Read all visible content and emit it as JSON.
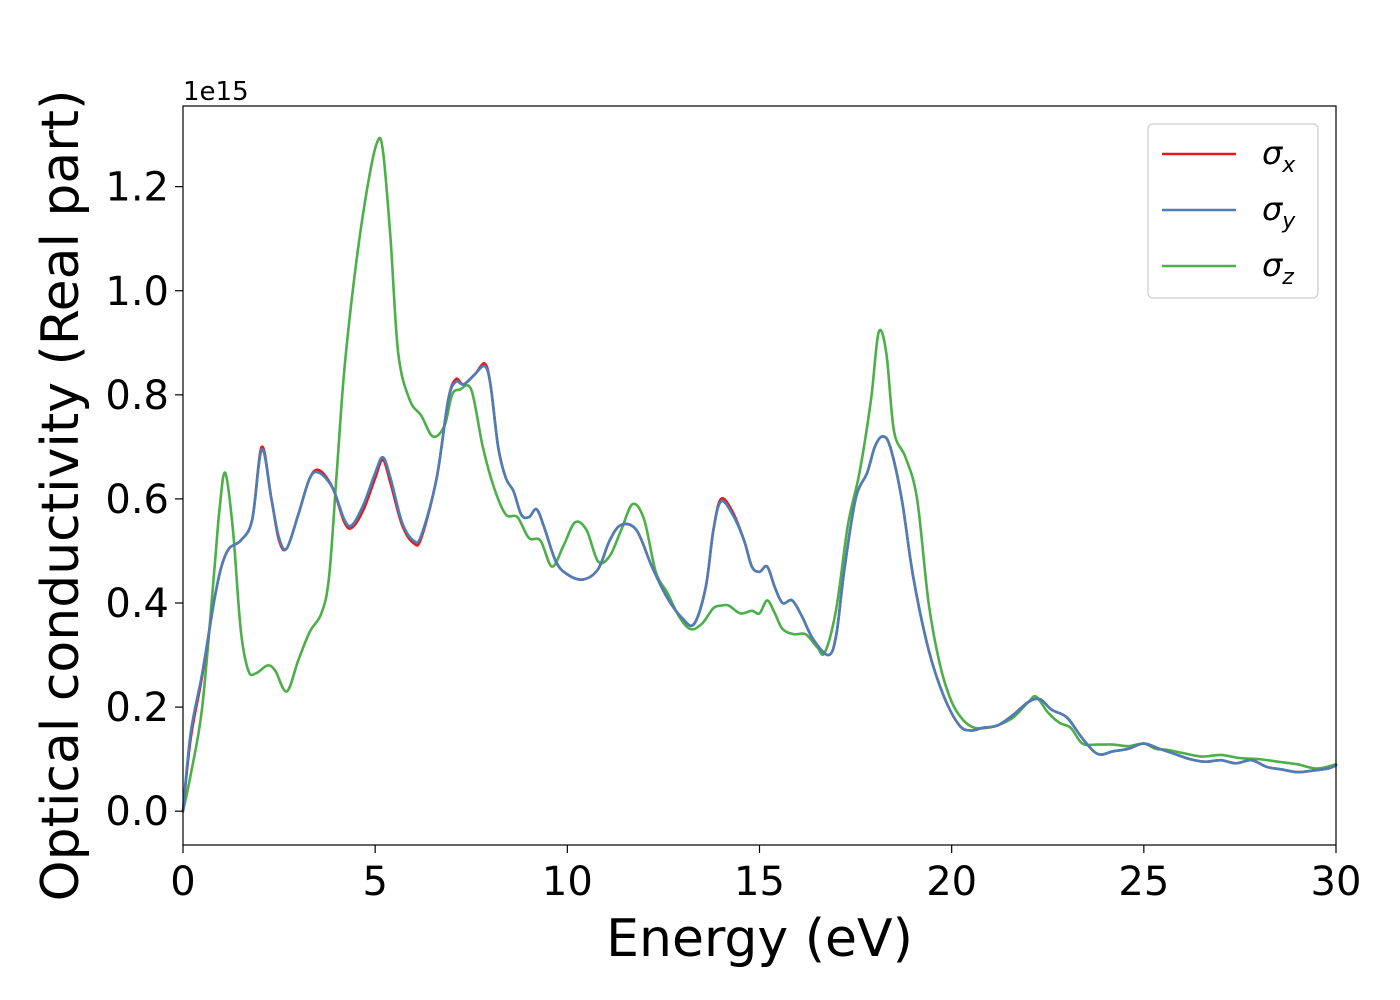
{
  "chart_data": {
    "type": "line",
    "xlabel": "Energy (eV)",
    "ylabel": "Optical conductivity (Real part)",
    "y_offset_label": "1e15",
    "xlim": [
      0,
      30
    ],
    "ylim": [
      -0.065,
      1.355
    ],
    "x_ticks": [
      0,
      5,
      10,
      15,
      20,
      25,
      30
    ],
    "x_tick_labels": [
      "0",
      "5",
      "10",
      "15",
      "20",
      "25",
      "30"
    ],
    "y_ticks": [
      0.0,
      0.2,
      0.4,
      0.6,
      0.8,
      1.0,
      1.2
    ],
    "y_tick_labels": [
      "0.0",
      "0.2",
      "0.4",
      "0.6",
      "0.8",
      "1.0",
      "1.2"
    ],
    "grid": false,
    "legend_position": "upper-right",
    "series": [
      {
        "name": "σx",
        "name_base": "σ",
        "name_sub": "x",
        "color": "#e41a1c",
        "x": [
          0,
          0.2,
          0.5,
          0.8,
          1.0,
          1.2,
          1.5,
          1.8,
          2.05,
          2.3,
          2.5,
          2.7,
          3.0,
          3.3,
          3.55,
          3.9,
          4.2,
          4.4,
          4.7,
          5.0,
          5.2,
          5.4,
          5.7,
          6.0,
          6.2,
          6.6,
          6.9,
          7.1,
          7.3,
          7.6,
          7.85,
          8.0,
          8.2,
          8.4,
          8.6,
          8.8,
          9.0,
          9.2,
          9.4,
          9.7,
          10.0,
          10.4,
          10.8,
          11.1,
          11.4,
          11.8,
          12.2,
          12.6,
          13.0,
          13.3,
          13.6,
          13.8,
          14.0,
          14.3,
          14.6,
          14.8,
          15.0,
          15.2,
          15.4,
          15.6,
          15.85,
          16.1,
          16.4,
          16.8,
          17.0,
          17.2,
          17.5,
          17.8,
          18.0,
          18.2,
          18.4,
          18.7,
          19.0,
          19.4,
          19.8,
          20.2,
          20.5,
          20.8,
          21.2,
          21.6,
          22.0,
          22.3,
          22.6,
          23.0,
          23.4,
          23.8,
          24.2,
          24.6,
          25.0,
          25.4,
          25.8,
          26.2,
          26.6,
          27.0,
          27.4,
          27.8,
          28.2,
          28.6,
          29.0,
          29.4,
          29.8,
          30.0
        ],
        "y": [
          0.0,
          0.14,
          0.26,
          0.4,
          0.47,
          0.505,
          0.52,
          0.56,
          0.7,
          0.6,
          0.52,
          0.505,
          0.57,
          0.64,
          0.655,
          0.62,
          0.555,
          0.545,
          0.58,
          0.64,
          0.675,
          0.63,
          0.55,
          0.515,
          0.525,
          0.64,
          0.79,
          0.83,
          0.82,
          0.84,
          0.86,
          0.82,
          0.7,
          0.64,
          0.615,
          0.57,
          0.565,
          0.58,
          0.545,
          0.48,
          0.455,
          0.445,
          0.465,
          0.52,
          0.55,
          0.54,
          0.47,
          0.41,
          0.37,
          0.36,
          0.43,
          0.54,
          0.6,
          0.575,
          0.52,
          0.47,
          0.46,
          0.47,
          0.43,
          0.4,
          0.405,
          0.375,
          0.33,
          0.3,
          0.34,
          0.46,
          0.6,
          0.65,
          0.7,
          0.72,
          0.7,
          0.6,
          0.45,
          0.31,
          0.22,
          0.165,
          0.155,
          0.16,
          0.165,
          0.185,
          0.21,
          0.215,
          0.195,
          0.18,
          0.14,
          0.11,
          0.115,
          0.12,
          0.13,
          0.12,
          0.11,
          0.1,
          0.095,
          0.098,
          0.092,
          0.098,
          0.085,
          0.08,
          0.075,
          0.078,
          0.082,
          0.088
        ]
      },
      {
        "name": "σy",
        "name_base": "σ",
        "name_sub": "y",
        "color": "#4a7fb8",
        "x": [
          0,
          0.2,
          0.5,
          0.8,
          1.0,
          1.2,
          1.5,
          1.8,
          2.05,
          2.3,
          2.5,
          2.7,
          3.0,
          3.3,
          3.55,
          3.9,
          4.2,
          4.4,
          4.7,
          5.0,
          5.2,
          5.4,
          5.7,
          6.0,
          6.2,
          6.6,
          6.9,
          7.1,
          7.3,
          7.6,
          7.85,
          8.0,
          8.2,
          8.4,
          8.6,
          8.8,
          9.0,
          9.2,
          9.4,
          9.7,
          10.0,
          10.4,
          10.8,
          11.1,
          11.4,
          11.8,
          12.2,
          12.6,
          13.0,
          13.3,
          13.6,
          13.8,
          14.0,
          14.3,
          14.6,
          14.8,
          15.0,
          15.2,
          15.4,
          15.6,
          15.85,
          16.1,
          16.4,
          16.8,
          17.0,
          17.2,
          17.5,
          17.8,
          18.0,
          18.2,
          18.4,
          18.7,
          19.0,
          19.4,
          19.8,
          20.2,
          20.5,
          20.8,
          21.2,
          21.6,
          22.0,
          22.3,
          22.6,
          23.0,
          23.4,
          23.8,
          24.2,
          24.6,
          25.0,
          25.4,
          25.8,
          26.2,
          26.6,
          27.0,
          27.4,
          27.8,
          28.2,
          28.6,
          29.0,
          29.4,
          29.8,
          30.0
        ],
        "y": [
          0.0,
          0.15,
          0.265,
          0.4,
          0.47,
          0.505,
          0.52,
          0.56,
          0.695,
          0.6,
          0.525,
          0.505,
          0.57,
          0.64,
          0.65,
          0.62,
          0.56,
          0.55,
          0.59,
          0.65,
          0.68,
          0.64,
          0.555,
          0.52,
          0.53,
          0.64,
          0.79,
          0.825,
          0.82,
          0.84,
          0.855,
          0.82,
          0.7,
          0.64,
          0.615,
          0.57,
          0.565,
          0.58,
          0.545,
          0.48,
          0.455,
          0.445,
          0.465,
          0.52,
          0.55,
          0.54,
          0.47,
          0.41,
          0.37,
          0.36,
          0.43,
          0.54,
          0.595,
          0.57,
          0.52,
          0.47,
          0.46,
          0.47,
          0.43,
          0.4,
          0.405,
          0.375,
          0.33,
          0.3,
          0.34,
          0.46,
          0.6,
          0.65,
          0.7,
          0.72,
          0.7,
          0.6,
          0.45,
          0.31,
          0.22,
          0.165,
          0.155,
          0.16,
          0.165,
          0.185,
          0.21,
          0.215,
          0.195,
          0.18,
          0.14,
          0.11,
          0.115,
          0.12,
          0.13,
          0.12,
          0.11,
          0.1,
          0.095,
          0.098,
          0.092,
          0.098,
          0.085,
          0.08,
          0.075,
          0.078,
          0.082,
          0.088
        ]
      },
      {
        "name": "σz",
        "name_base": "σ",
        "name_sub": "z",
        "color": "#4daf4a",
        "x": [
          0,
          0.2,
          0.5,
          0.8,
          0.95,
          1.1,
          1.3,
          1.5,
          1.7,
          1.9,
          2.2,
          2.4,
          2.7,
          3.0,
          3.3,
          3.6,
          3.8,
          4.0,
          4.2,
          4.5,
          4.8,
          5.05,
          5.2,
          5.4,
          5.6,
          5.9,
          6.2,
          6.5,
          6.8,
          7.0,
          7.2,
          7.5,
          7.8,
          8.1,
          8.4,
          8.7,
          9.0,
          9.3,
          9.6,
          9.9,
          10.2,
          10.5,
          10.8,
          11.1,
          11.4,
          11.7,
          12.0,
          12.3,
          12.6,
          12.9,
          13.2,
          13.5,
          13.8,
          14.0,
          14.2,
          14.5,
          14.8,
          15.0,
          15.2,
          15.4,
          15.6,
          15.9,
          16.2,
          16.5,
          16.7,
          17.0,
          17.3,
          17.6,
          17.9,
          18.1,
          18.3,
          18.5,
          18.8,
          19.1,
          19.4,
          19.7,
          20.0,
          20.3,
          20.6,
          20.9,
          21.2,
          21.6,
          22.0,
          22.2,
          22.5,
          22.8,
          23.1,
          23.4,
          23.8,
          24.2,
          24.6,
          25.0,
          25.3,
          25.6,
          26.0,
          26.5,
          27.0,
          27.5,
          28.0,
          28.5,
          29.0,
          29.5,
          30.0
        ],
        "y": [
          0.0,
          0.07,
          0.2,
          0.45,
          0.58,
          0.65,
          0.54,
          0.35,
          0.27,
          0.265,
          0.28,
          0.27,
          0.23,
          0.29,
          0.345,
          0.38,
          0.45,
          0.65,
          0.85,
          1.05,
          1.2,
          1.285,
          1.27,
          1.1,
          0.88,
          0.79,
          0.76,
          0.72,
          0.74,
          0.8,
          0.81,
          0.81,
          0.7,
          0.62,
          0.57,
          0.565,
          0.525,
          0.52,
          0.47,
          0.51,
          0.555,
          0.54,
          0.48,
          0.49,
          0.54,
          0.59,
          0.56,
          0.46,
          0.42,
          0.375,
          0.35,
          0.36,
          0.39,
          0.395,
          0.395,
          0.38,
          0.385,
          0.38,
          0.405,
          0.38,
          0.35,
          0.34,
          0.34,
          0.315,
          0.305,
          0.39,
          0.55,
          0.65,
          0.79,
          0.92,
          0.88,
          0.73,
          0.68,
          0.6,
          0.4,
          0.28,
          0.21,
          0.175,
          0.16,
          0.16,
          0.165,
          0.18,
          0.21,
          0.22,
          0.19,
          0.17,
          0.16,
          0.13,
          0.128,
          0.128,
          0.125,
          0.13,
          0.12,
          0.118,
          0.112,
          0.105,
          0.108,
          0.102,
          0.1,
          0.095,
          0.09,
          0.082,
          0.09
        ]
      }
    ]
  }
}
